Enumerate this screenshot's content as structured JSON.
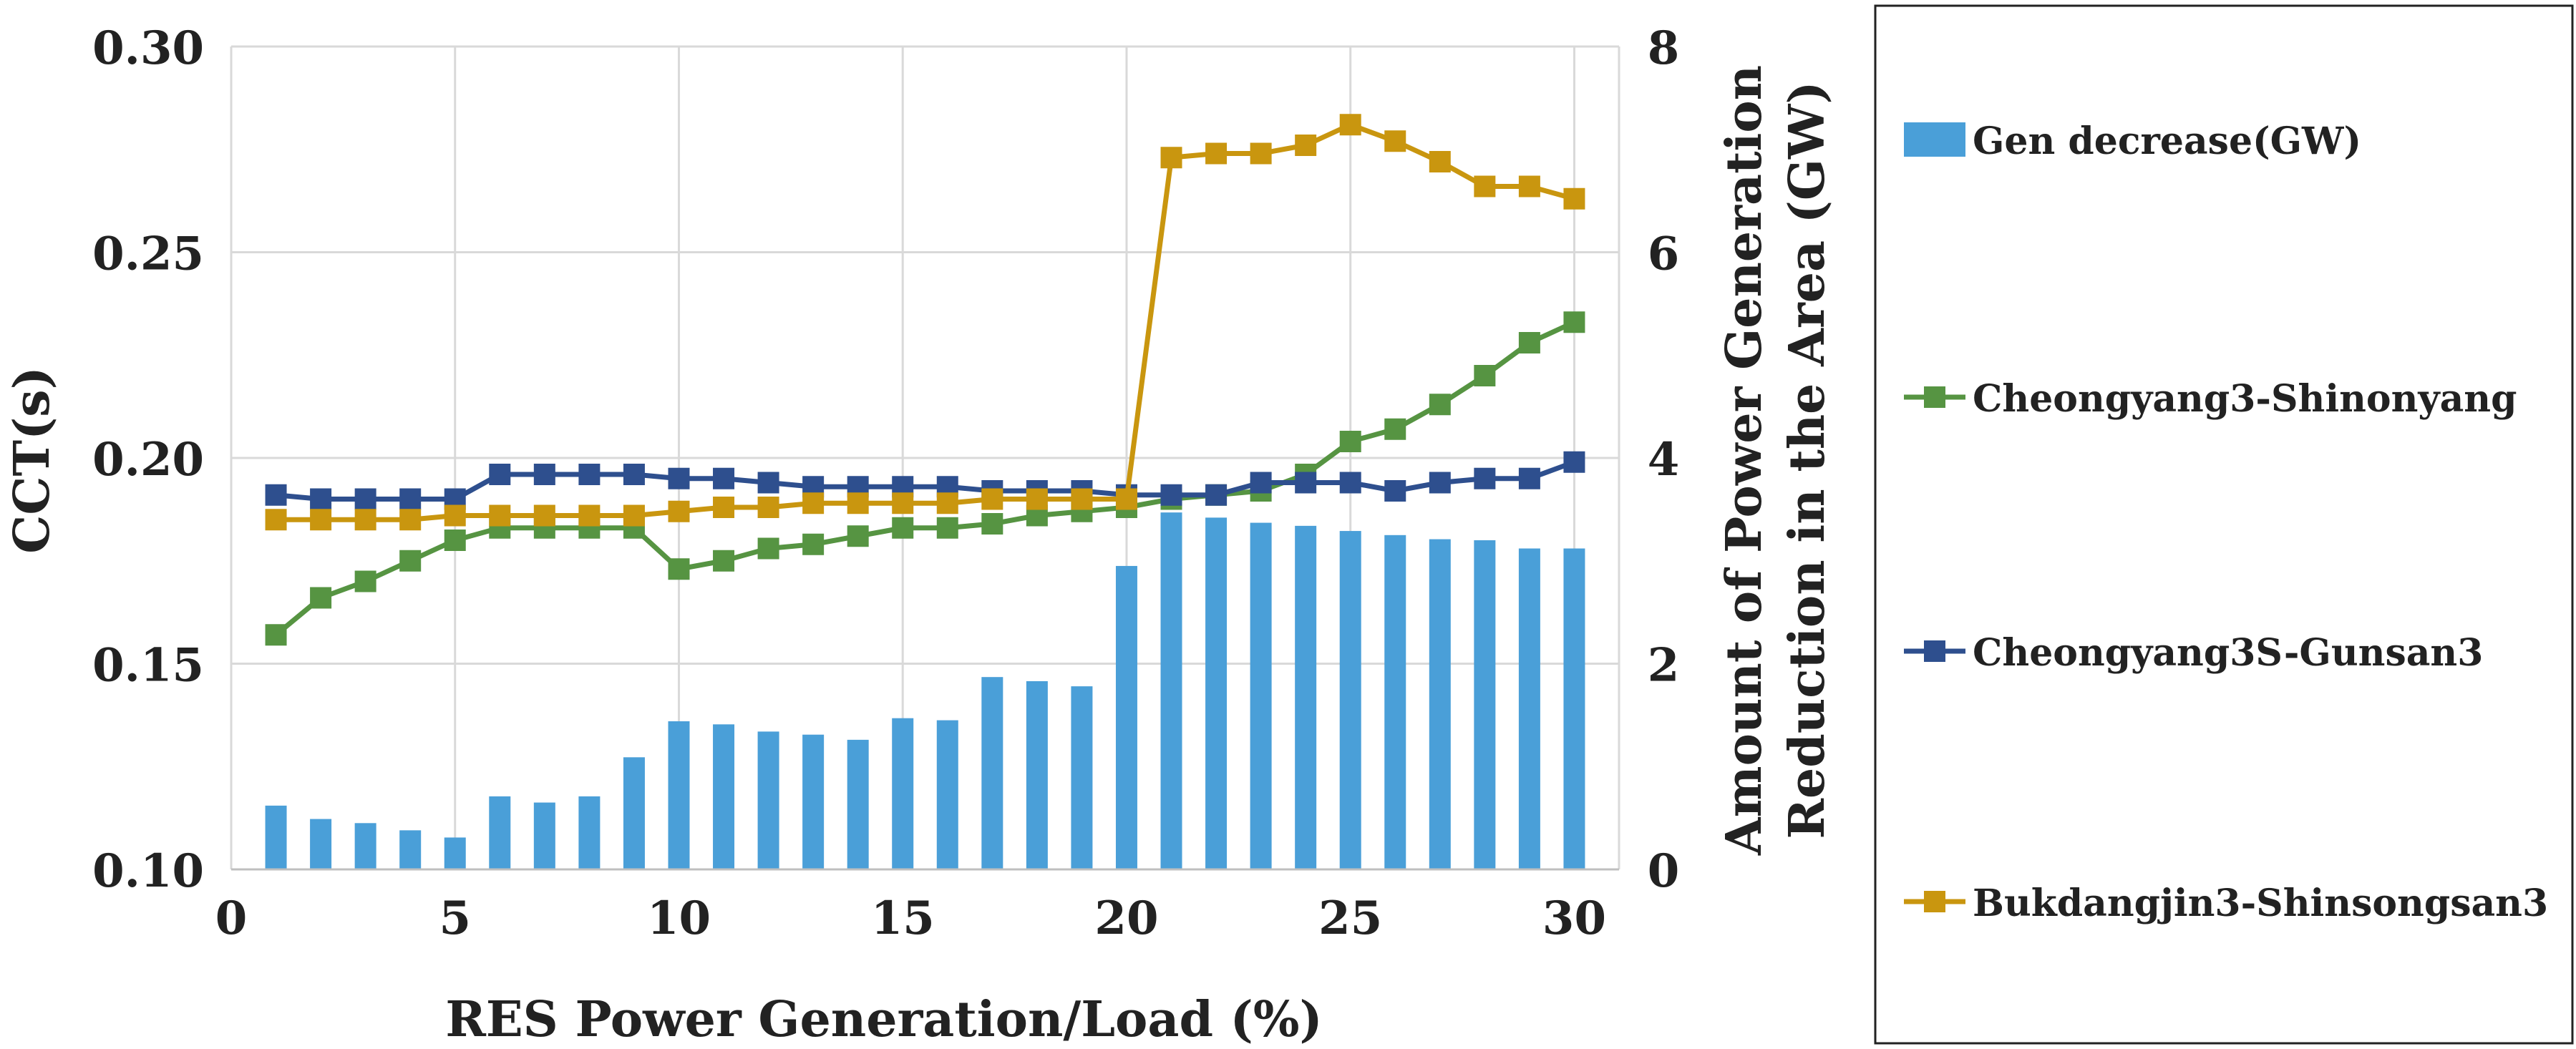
{
  "chart_data": {
    "type": "bar+line",
    "title": "",
    "xlabel": "RES Power Generation/Load (%)",
    "ylabel": "CCT(s)",
    "y2label_line1": "Amount of Power Generation",
    "y2label_line2": "Reduction in the Area (GW)",
    "xlim": [
      0,
      31
    ],
    "xticks": [
      "0",
      "5",
      "10",
      "15",
      "20",
      "25",
      "30"
    ],
    "ylim": [
      0.1,
      0.3
    ],
    "yticks": [
      "0.10",
      "0.15",
      "0.20",
      "0.25",
      "0.30"
    ],
    "y2lim": [
      0,
      8
    ],
    "y2ticks": [
      "0",
      "2",
      "4",
      "6",
      "8"
    ],
    "grid": true,
    "legend_position": "right",
    "x": [
      1,
      2,
      3,
      4,
      5,
      6,
      7,
      8,
      9,
      10,
      11,
      12,
      13,
      14,
      15,
      16,
      17,
      18,
      19,
      20,
      21,
      22,
      23,
      24,
      25,
      26,
      27,
      28,
      29,
      30
    ],
    "bars": {
      "name": "Gen decrease(GW)",
      "axis": "right",
      "color": "#4a9fd8",
      "values": [
        0.62,
        0.49,
        0.45,
        0.38,
        0.31,
        0.71,
        0.65,
        0.71,
        1.09,
        1.44,
        1.41,
        1.34,
        1.31,
        1.26,
        1.47,
        1.45,
        1.87,
        1.83,
        1.78,
        2.95,
        3.47,
        3.42,
        3.37,
        3.34,
        3.29,
        3.25,
        3.21,
        3.2,
        3.12,
        3.12
      ]
    },
    "series": [
      {
        "name": "Cheongyang3-Shinonyang",
        "axis": "left",
        "color": "#569442",
        "values": [
          0.157,
          0.166,
          0.17,
          0.175,
          0.18,
          0.183,
          0.183,
          0.183,
          0.183,
          0.173,
          0.175,
          0.178,
          0.179,
          0.181,
          0.183,
          0.183,
          0.184,
          0.186,
          0.187,
          0.188,
          0.19,
          0.191,
          0.192,
          0.196,
          0.204,
          0.207,
          0.213,
          0.22,
          0.228,
          0.233
        ]
      },
      {
        "name": "Cheongyang3S-Gunsan3",
        "axis": "left",
        "color": "#2e4f8e",
        "values": [
          0.191,
          0.19,
          0.19,
          0.19,
          0.19,
          0.196,
          0.196,
          0.196,
          0.196,
          0.195,
          0.195,
          0.194,
          0.193,
          0.193,
          0.193,
          0.193,
          0.192,
          0.192,
          0.192,
          0.191,
          0.191,
          0.191,
          0.194,
          0.194,
          0.194,
          0.192,
          0.194,
          0.195,
          0.195,
          0.199
        ]
      },
      {
        "name": "Bukdangjin3-Shinsongsan3",
        "axis": "left",
        "color": "#c9960f",
        "values": [
          0.185,
          0.185,
          0.185,
          0.185,
          0.186,
          0.186,
          0.186,
          0.186,
          0.186,
          0.187,
          0.188,
          0.188,
          0.189,
          0.189,
          0.189,
          0.189,
          0.19,
          0.19,
          0.19,
          0.19,
          0.273,
          0.274,
          0.274,
          0.276,
          0.281,
          0.277,
          0.272,
          0.266,
          0.266,
          0.263
        ]
      }
    ]
  }
}
